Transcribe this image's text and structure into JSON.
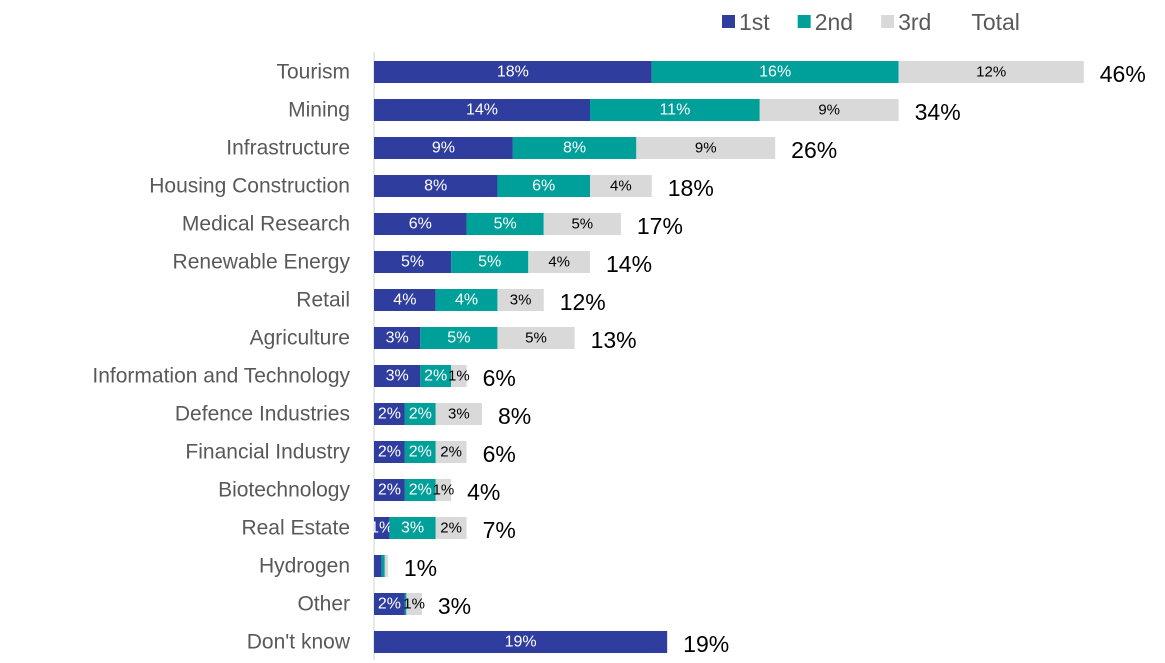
{
  "chart_data": {
    "type": "stacked-barh",
    "categories": [
      "Tourism",
      "Mining",
      "Infrastructure",
      "Housing Construction",
      "Medical Research",
      "Renewable Energy",
      "Retail",
      "Agriculture",
      "Information and Technology",
      "Defence Industries",
      "Financial Industry",
      "Biotechnology",
      "Real Estate",
      "Hydrogen",
      "Other",
      "Don't know"
    ],
    "series": [
      {
        "name": "1st",
        "color": "#2f3e9e",
        "values": [
          18,
          14,
          9,
          8,
          6,
          5,
          4,
          3,
          3,
          2,
          2,
          2,
          1,
          0.5,
          2,
          19
        ],
        "value_labels": [
          "18%",
          "14%",
          "9%",
          "8%",
          "6%",
          "5%",
          "4%",
          "3%",
          "3%",
          "2%",
          "2%",
          "2%",
          "1%",
          null,
          "2%",
          "19%"
        ]
      },
      {
        "name": "2nd",
        "color": "#00a09a",
        "values": [
          16,
          11,
          8,
          6,
          5,
          5,
          4,
          5,
          2,
          2,
          2,
          2,
          3,
          0.2,
          0.1,
          0
        ],
        "value_labels": [
          "16%",
          "11%",
          "8%",
          "6%",
          "5%",
          "5%",
          "4%",
          "5%",
          "2%",
          "2%",
          "2%",
          "2%",
          "3%",
          null,
          null,
          null
        ]
      },
      {
        "name": "3rd",
        "color": "#d9d9d9",
        "values": [
          12,
          9,
          9,
          4,
          5,
          4,
          3,
          5,
          1,
          3,
          2,
          1,
          2,
          0.2,
          1,
          0
        ],
        "value_labels": [
          "12%",
          "9%",
          "9%",
          "4%",
          "5%",
          "4%",
          "3%",
          "5%",
          "1%",
          "3%",
          "2%",
          "1%",
          "2%",
          null,
          "1%",
          null
        ]
      }
    ],
    "total": {
      "name": "Total",
      "values": [
        46,
        34,
        26,
        18,
        17,
        14,
        12,
        13,
        6,
        8,
        6,
        4,
        7,
        1,
        3,
        19
      ],
      "value_labels": [
        "46%",
        "34%",
        "26%",
        "18%",
        "17%",
        "14%",
        "12%",
        "13%",
        "6%",
        "8%",
        "6%",
        "4%",
        "7%",
        "1%",
        "3%",
        "19%"
      ]
    },
    "legend": "top-right"
  }
}
